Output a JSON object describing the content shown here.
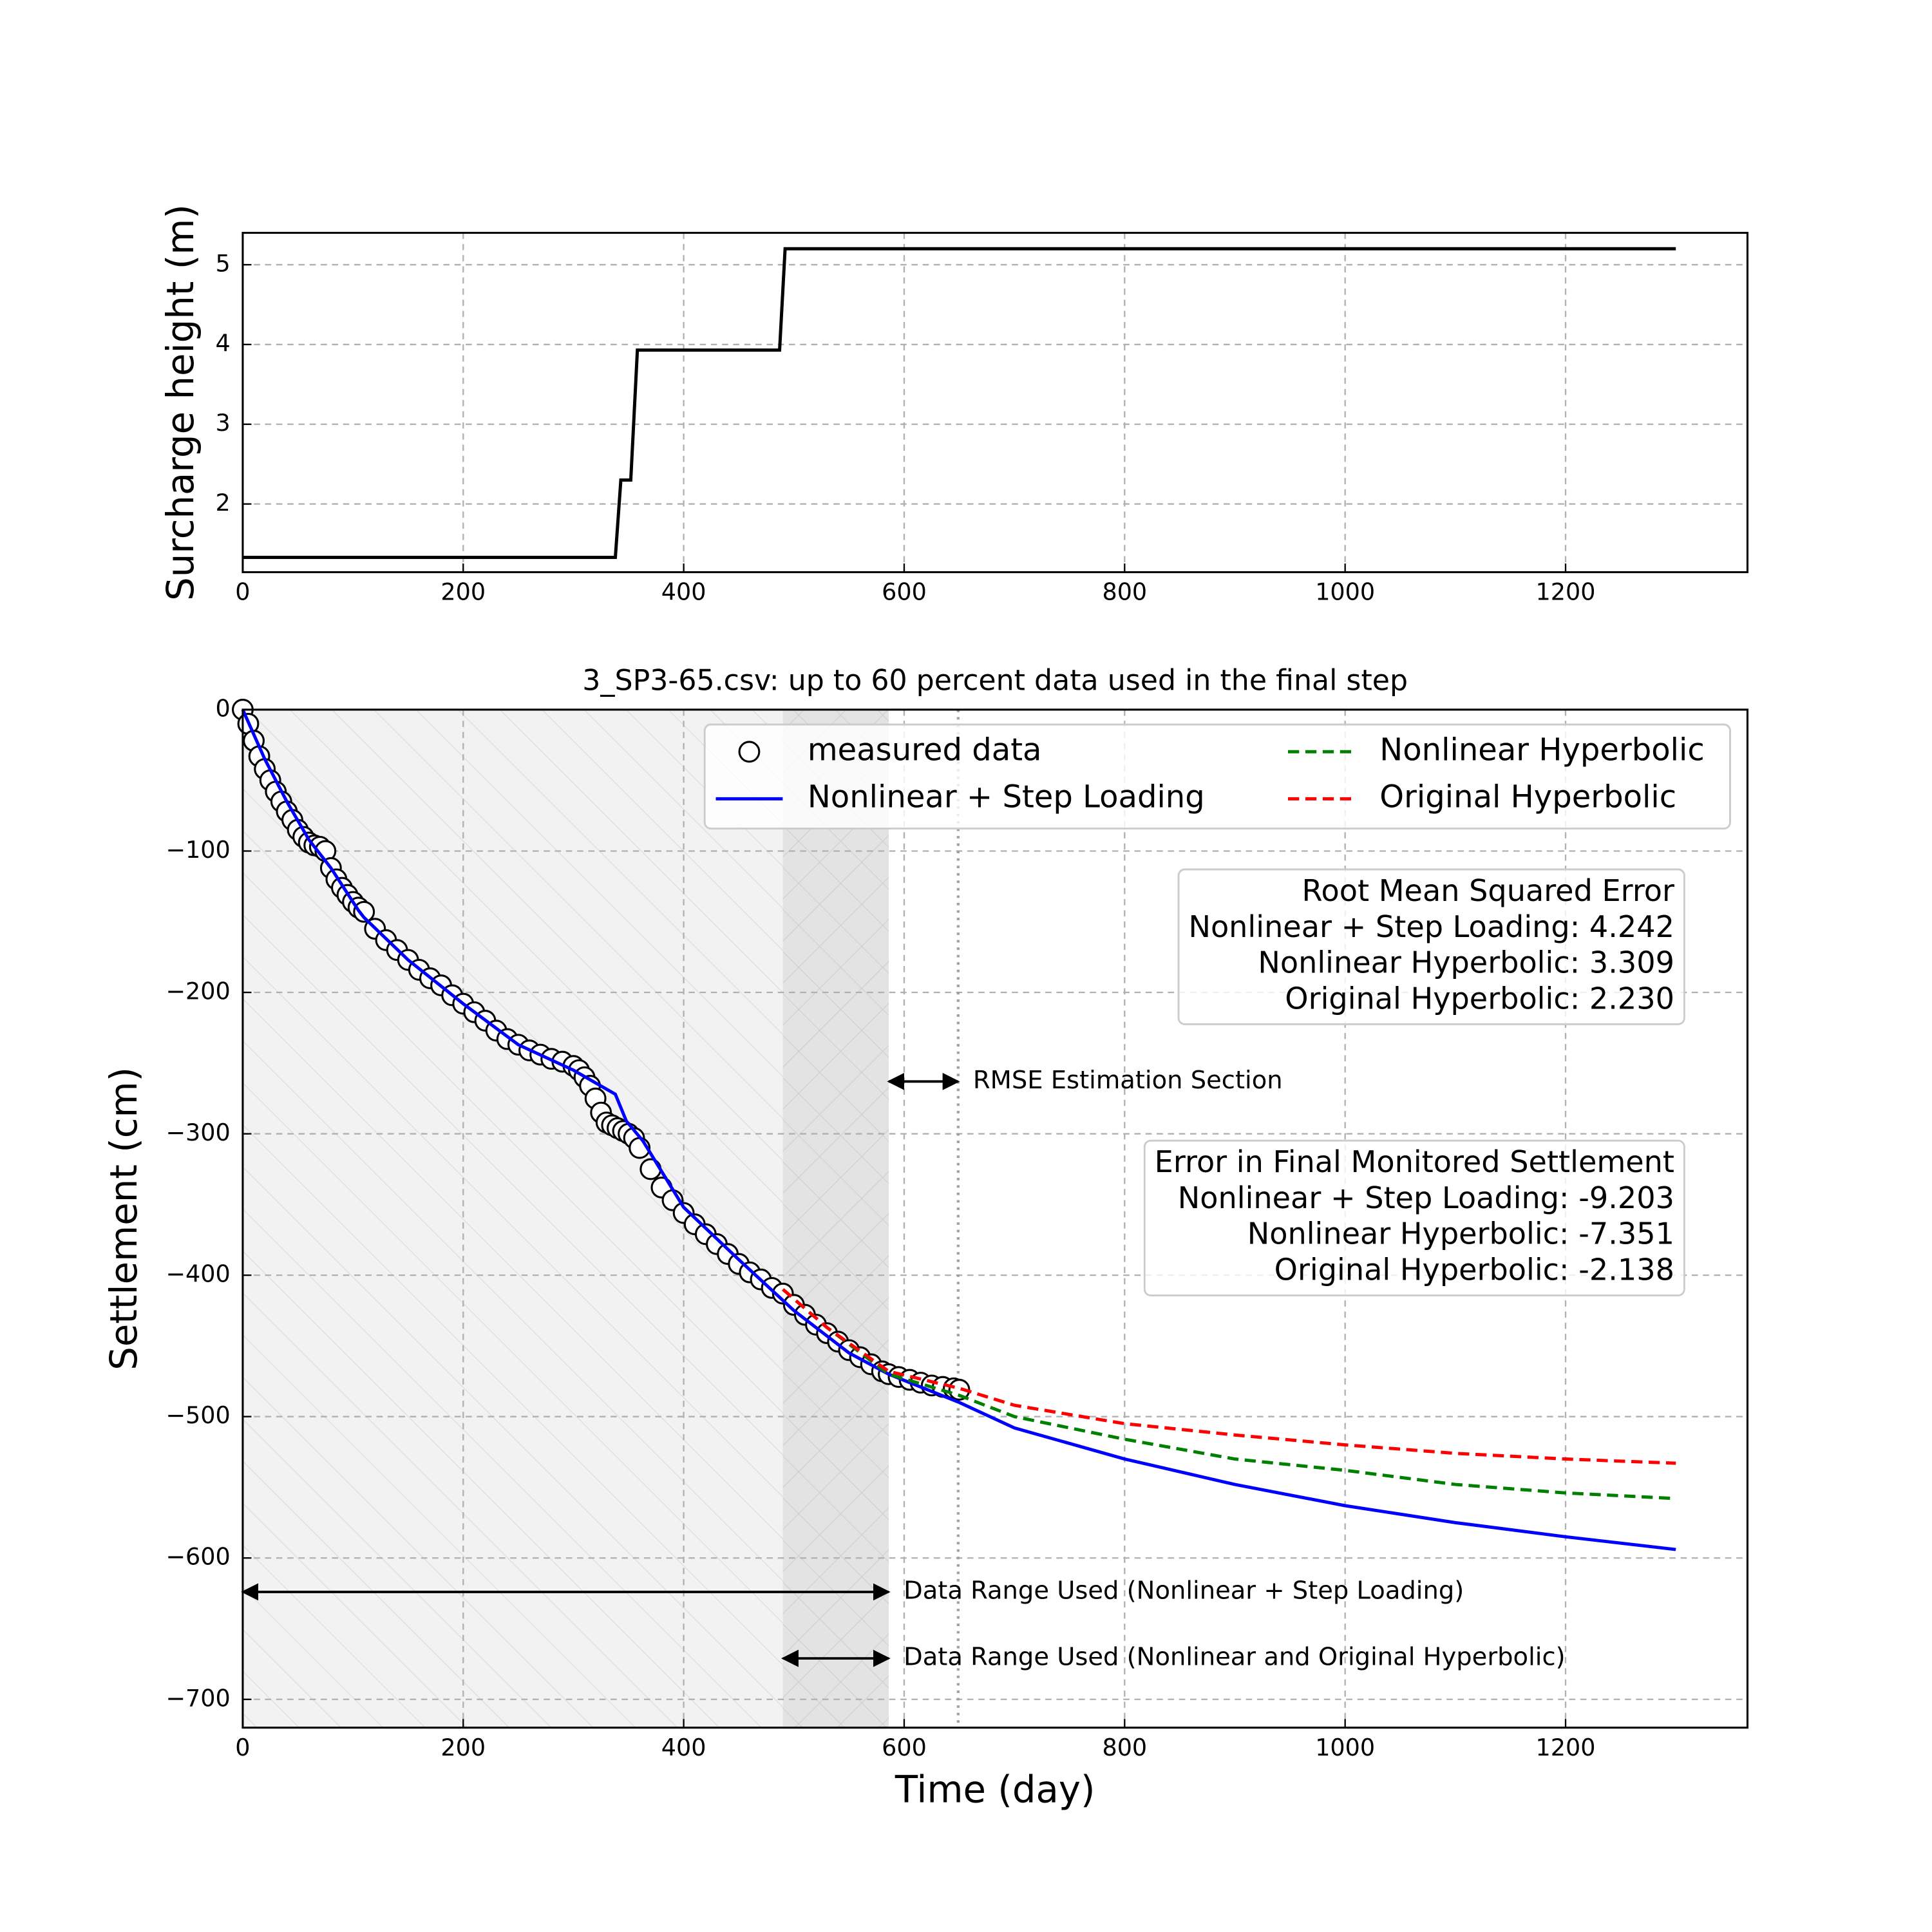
{
  "chart_data": [
    {
      "type": "line",
      "ylabel": "Surcharge height (m)",
      "xlim": [
        0,
        1365
      ],
      "ylim": [
        1.145,
        5.4
      ],
      "xticks": [
        0,
        200,
        400,
        600,
        800,
        1000,
        1200
      ],
      "yticks": [
        2,
        3,
        4,
        5
      ],
      "grid": true,
      "series": [
        {
          "color": "#000000",
          "style": "solid",
          "x": [
            0,
            338,
            343,
            352,
            358,
            487,
            492,
            1300
          ],
          "values": [
            1.33,
            1.33,
            2.3,
            2.3,
            3.93,
            3.93,
            5.2,
            5.2
          ]
        }
      ]
    },
    {
      "type": "line",
      "title": "3_SP3-65.csv: up to 60 percent data used in the final step",
      "xlabel": "Time (day)",
      "ylabel": "Settlement (cm)",
      "xlim": [
        0,
        1365
      ],
      "ylim": [
        -720,
        0
      ],
      "xticks": [
        0,
        200,
        400,
        600,
        800,
        1000,
        1200
      ],
      "yticks": [
        0,
        {
          "value": -100,
          "label": "−100"
        },
        {
          "value": -200,
          "label": "−200"
        },
        {
          "value": -300,
          "label": "−300"
        },
        {
          "value": -400,
          "label": "−400"
        },
        {
          "value": -500,
          "label": "−500"
        },
        {
          "value": -600,
          "label": "−600"
        },
        {
          "value": -700,
          "label": "−700"
        }
      ],
      "grid": true,
      "legend": "upper right",
      "spans": [
        {
          "x": [
            0,
            586
          ],
          "hatch": "/"
        },
        {
          "x": [
            490,
            586
          ],
          "hatch": "x"
        }
      ],
      "vlines": [
        649
      ],
      "series": [
        {
          "name": "measured data",
          "color": "#000000",
          "style": "markers",
          "x": [
            0,
            5,
            10,
            15,
            20,
            25,
            30,
            35,
            40,
            45,
            50,
            55,
            60,
            65,
            70,
            75,
            80,
            85,
            90,
            95,
            100,
            105,
            110,
            120,
            130,
            140,
            150,
            160,
            170,
            180,
            190,
            200,
            210,
            220,
            230,
            240,
            250,
            260,
            270,
            280,
            290,
            300,
            305,
            310,
            315,
            320,
            325,
            330,
            335,
            340,
            345,
            350,
            355,
            360,
            370,
            380,
            390,
            400,
            410,
            420,
            430,
            440,
            450,
            460,
            470,
            480,
            490,
            500,
            510,
            520,
            530,
            540,
            550,
            560,
            570,
            580,
            586,
            595,
            605,
            615,
            625,
            635,
            645,
            650
          ],
          "values": [
            0,
            -10,
            -22,
            -33,
            -42,
            -50,
            -58,
            -65,
            -72,
            -78,
            -85,
            -90,
            -94,
            -96,
            -97,
            -100,
            -112,
            -120,
            -126,
            -131,
            -136,
            -140,
            -143,
            -155,
            -163,
            -170,
            -177,
            -184,
            -190,
            -195,
            -202,
            -208,
            -214,
            -220,
            -227,
            -233,
            -237,
            -241,
            -244,
            -247,
            -249,
            -252,
            -255,
            -260,
            -266,
            -275,
            -285,
            -292,
            -294,
            -296,
            -298,
            -300,
            -303,
            -310,
            -325,
            -338,
            -347,
            -356,
            -364,
            -371,
            -378,
            -385,
            -392,
            -398,
            -403,
            -409,
            -413,
            -421,
            -428,
            -435,
            -441,
            -447,
            -453,
            -458,
            -463,
            -468,
            -470,
            -472,
            -474,
            -476,
            -478,
            -479,
            -480,
            -481
          ]
        },
        {
          "name": "Nonlinear + Step Loading",
          "color": "#0000ff",
          "style": "solid",
          "x": [
            0,
            20,
            40,
            60,
            80,
            105,
            110,
            150,
            200,
            250,
            300,
            338,
            348,
            363,
            400,
            450,
            500,
            550,
            586,
            650,
            700,
            800,
            900,
            1000,
            1100,
            1200,
            1300
          ],
          "values": [
            0,
            -35,
            -65,
            -92,
            -112,
            -142,
            -147,
            -177,
            -208,
            -237,
            -255,
            -272,
            -291,
            -305,
            -352,
            -389,
            -425,
            -455,
            -470,
            -490,
            -508,
            -530,
            -548,
            -563,
            -575,
            -585,
            -594
          ]
        },
        {
          "name": "Nonlinear Hyperbolic",
          "color": "#008000",
          "style": "dashed",
          "x": [
            490,
            530,
            586,
            650,
            700,
            800,
            900,
            1000,
            1100,
            1200,
            1300
          ],
          "values": [
            -410,
            -437,
            -470,
            -485,
            -500,
            -516,
            -530,
            -538,
            -548,
            -554,
            -558
          ]
        },
        {
          "name": "Original Hyperbolic",
          "color": "#ff0000",
          "style": "dashed",
          "x": [
            490,
            530,
            586,
            650,
            700,
            800,
            900,
            1000,
            1100,
            1200,
            1300
          ],
          "values": [
            -410,
            -437,
            -468,
            -480,
            -492,
            -505,
            -513,
            -520,
            -526,
            -530,
            -533
          ]
        }
      ],
      "arrows": [
        {
          "text": "RMSE Estimation Section",
          "x": [
            586,
            649
          ],
          "y": -263
        },
        {
          "text": "Data Range Used (Nonlinear + Step Loading)",
          "x": [
            0,
            586
          ],
          "y": -624
        },
        {
          "text": "Data Range Used (Nonlinear and Original Hyperbolic)",
          "x": [
            490,
            586
          ],
          "y": -671
        }
      ],
      "annotations": [
        {
          "color": "#ff0000",
          "lines": [
            "Root Mean Squared Error",
            "Nonlinear + Step Loading: 4.242",
            "Nonlinear Hyperbolic: 3.309",
            "Original Hyperbolic: 2.230"
          ]
        },
        {
          "color": "#ff0000",
          "lines": [
            "Error in Final Monitored Settlement",
            "Nonlinear + Step Loading: -9.203",
            "Nonlinear Hyperbolic: -7.351",
            "Original Hyperbolic: -2.138"
          ]
        }
      ]
    }
  ]
}
